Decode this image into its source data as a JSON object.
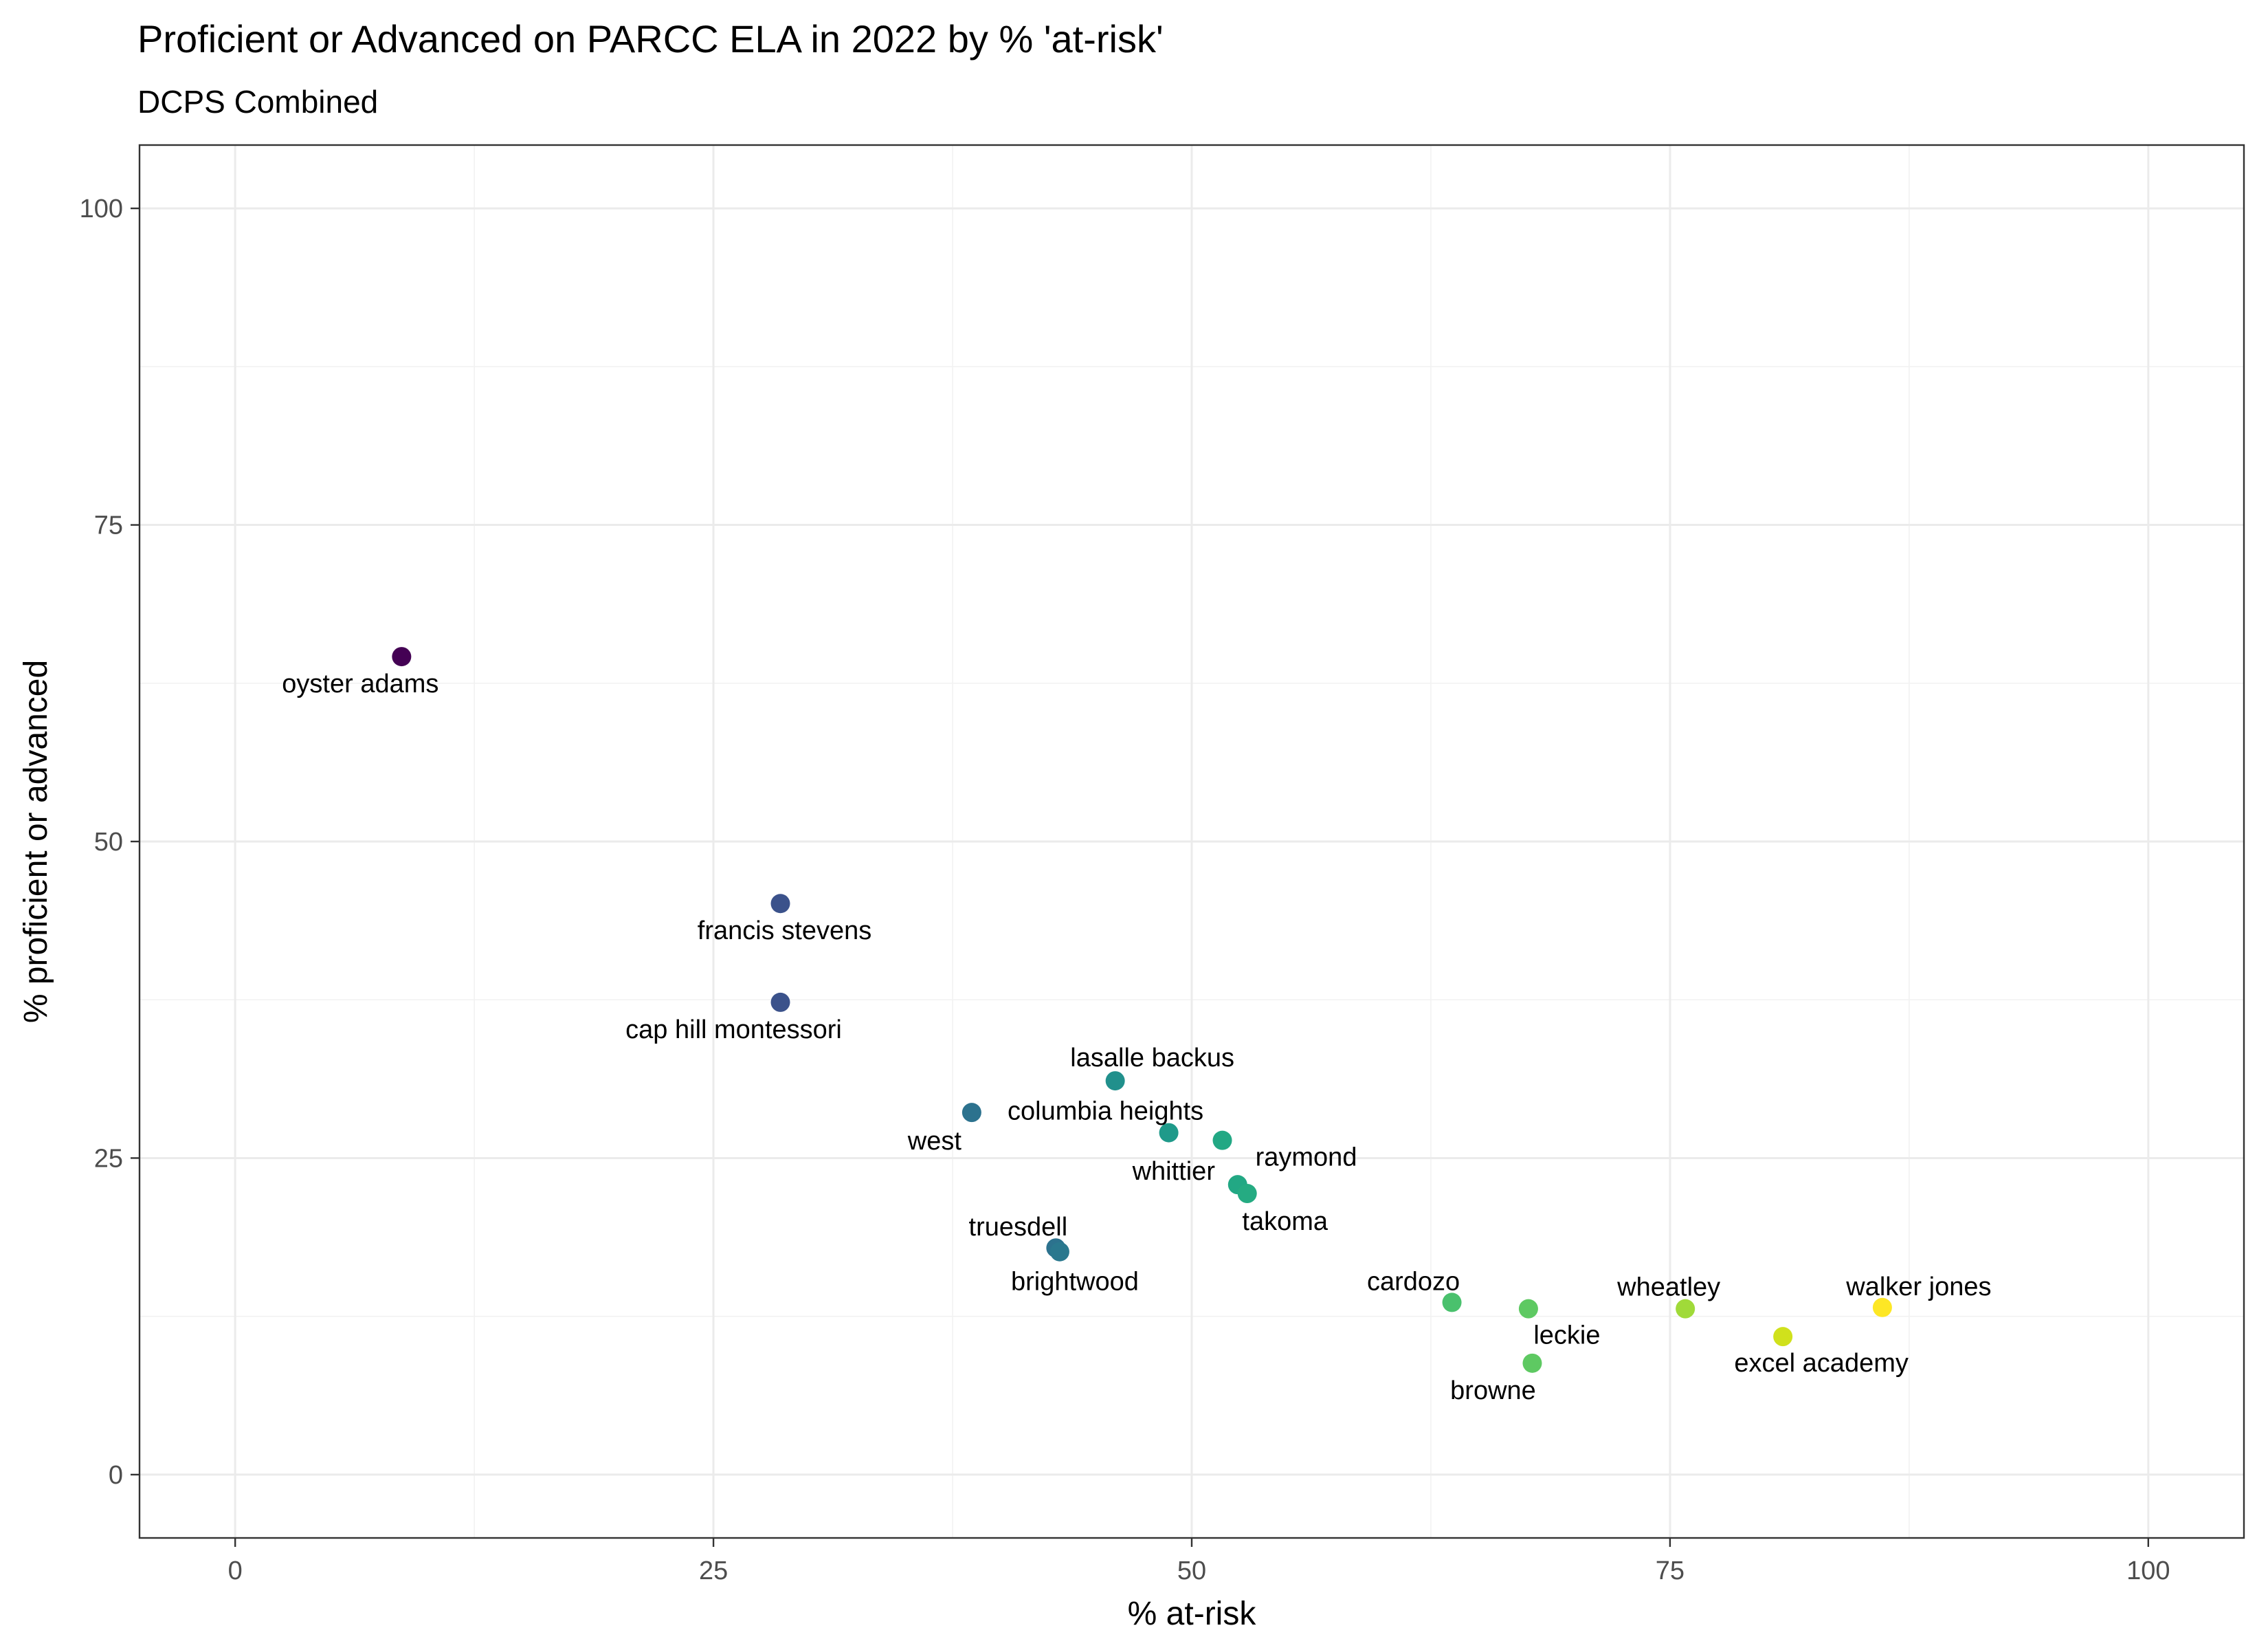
{
  "chart_data": {
    "type": "scatter",
    "title": "Proficient or Advanced on PARCC ELA in 2022 by % 'at-risk'",
    "subtitle": "DCPS Combined",
    "xlabel": "% at-risk",
    "ylabel": "% proficient or advanced",
    "xlim": [
      -5,
      105
    ],
    "ylim": [
      -5,
      105
    ],
    "x_ticks": [
      0,
      25,
      50,
      75,
      100
    ],
    "y_ticks": [
      0,
      25,
      50,
      75,
      100
    ],
    "x_tick_labels": [
      "0",
      "25",
      "50",
      "75",
      "100"
    ],
    "y_tick_labels": [
      "0",
      "25",
      "50",
      "75",
      "100"
    ],
    "grid": true,
    "color_scale": "viridis (by % at-risk)",
    "points": [
      {
        "label": "oyster adams",
        "x": 8.7,
        "y": 64.6,
        "color": "#440154"
      },
      {
        "label": "francis stevens",
        "x": 28.5,
        "y": 45.1,
        "color": "#3b528b"
      },
      {
        "label": "cap hill montessori",
        "x": 28.5,
        "y": 37.3,
        "color": "#3b528b"
      },
      {
        "label": "west",
        "x": 38.5,
        "y": 28.6,
        "color": "#2c728e"
      },
      {
        "label": "lasalle backus",
        "x": 46.0,
        "y": 31.1,
        "color": "#21908c"
      },
      {
        "label": "columbia heights",
        "x": 48.8,
        "y": 27.0,
        "color": "#1f9a8a"
      },
      {
        "label": "raymond",
        "x": 51.6,
        "y": 26.4,
        "color": "#22a884"
      },
      {
        "label": "whittier",
        "x": 52.4,
        "y": 22.9,
        "color": "#22a884"
      },
      {
        "label": "takoma",
        "x": 52.9,
        "y": 22.2,
        "color": "#25ab82"
      },
      {
        "label": "truesdell",
        "x": 42.9,
        "y": 17.9,
        "color": "#2c728e"
      },
      {
        "label": "brightwood",
        "x": 43.1,
        "y": 17.6,
        "color": "#2a788e"
      },
      {
        "label": "cardozo",
        "x": 63.6,
        "y": 13.6,
        "color": "#4ac16d"
      },
      {
        "label": "leckie",
        "x": 67.6,
        "y": 13.1,
        "color": "#5ec962"
      },
      {
        "label": "browne",
        "x": 67.8,
        "y": 8.8,
        "color": "#5ec962"
      },
      {
        "label": "wheatley",
        "x": 75.8,
        "y": 13.1,
        "color": "#a0da39"
      },
      {
        "label": "excel academy",
        "x": 80.9,
        "y": 10.9,
        "color": "#d0e11c"
      },
      {
        "label": "walker jones",
        "x": 86.1,
        "y": 13.2,
        "color": "#fde725"
      }
    ]
  }
}
